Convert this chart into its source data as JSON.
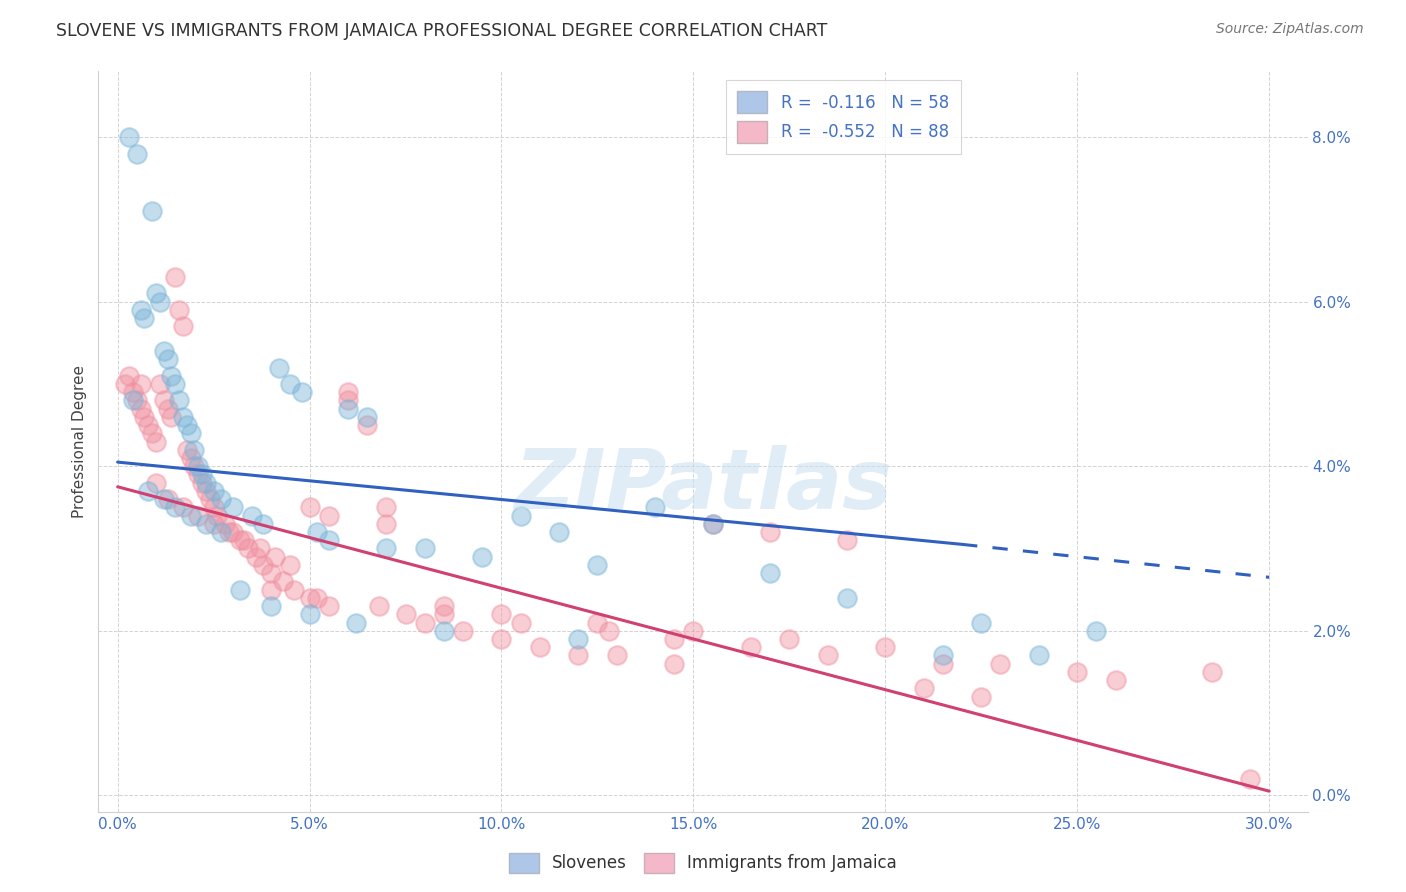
{
  "title": "SLOVENE VS IMMIGRANTS FROM JAMAICA PROFESSIONAL DEGREE CORRELATION CHART",
  "source": "Source: ZipAtlas.com",
  "xlim": [
    0,
    30
  ],
  "ylim": [
    0,
    8.5
  ],
  "x_ticks": [
    0,
    5,
    10,
    15,
    20,
    25,
    30
  ],
  "y_ticks": [
    0,
    2,
    4,
    6,
    8
  ],
  "watermark_text": "ZIPatlas",
  "legend_label1": "R =  -0.116   N = 58",
  "legend_label2": "R =  -0.552   N = 88",
  "legend_color1": "#aec6e8",
  "legend_color2": "#f4b8c8",
  "dot_color1": "#7ab4d8",
  "dot_color2": "#f090a0",
  "line_color1": "#3060c0",
  "line_color2": "#d04070",
  "blue_line": {
    "x0": 0,
    "y0": 4.05,
    "x1": 22,
    "y1": 3.05,
    "x2": 30,
    "y2": 2.65
  },
  "pink_line": {
    "x0": 0,
    "y0": 3.75,
    "x1": 30,
    "y1": 0.05
  },
  "slovene_x": [
    0.3,
    0.5,
    0.6,
    0.7,
    0.9,
    1.0,
    1.1,
    1.2,
    1.3,
    1.4,
    1.5,
    1.6,
    1.7,
    1.8,
    1.9,
    2.0,
    2.1,
    2.2,
    2.3,
    2.5,
    2.7,
    3.0,
    3.5,
    3.8,
    4.2,
    4.5,
    4.8,
    5.2,
    5.5,
    6.0,
    6.5,
    7.0,
    8.0,
    9.5,
    10.5,
    11.5,
    12.5,
    14.0,
    15.5,
    17.0,
    19.0,
    21.5,
    22.5,
    24.0,
    25.5,
    0.4,
    0.8,
    1.2,
    1.5,
    1.9,
    2.3,
    2.7,
    3.2,
    4.0,
    5.0,
    6.2,
    8.5,
    12.0
  ],
  "slovene_y": [
    8.0,
    7.8,
    5.9,
    5.8,
    7.1,
    6.1,
    6.0,
    5.4,
    5.3,
    5.1,
    5.0,
    4.8,
    4.6,
    4.5,
    4.4,
    4.2,
    4.0,
    3.9,
    3.8,
    3.7,
    3.6,
    3.5,
    3.4,
    3.3,
    5.2,
    5.0,
    4.9,
    3.2,
    3.1,
    4.7,
    4.6,
    3.0,
    3.0,
    2.9,
    3.4,
    3.2,
    2.8,
    3.5,
    3.3,
    2.7,
    2.4,
    1.7,
    2.1,
    1.7,
    2.0,
    4.8,
    3.7,
    3.6,
    3.5,
    3.4,
    3.3,
    3.2,
    2.5,
    2.3,
    2.2,
    2.1,
    2.0,
    1.9
  ],
  "jamaica_x": [
    0.2,
    0.4,
    0.5,
    0.6,
    0.7,
    0.8,
    0.9,
    1.0,
    1.1,
    1.2,
    1.3,
    1.4,
    1.5,
    1.6,
    1.7,
    1.8,
    1.9,
    2.0,
    2.1,
    2.2,
    2.3,
    2.4,
    2.5,
    2.6,
    2.8,
    3.0,
    3.2,
    3.4,
    3.6,
    3.8,
    4.0,
    4.3,
    4.6,
    5.0,
    5.5,
    6.0,
    6.5,
    7.0,
    7.5,
    8.0,
    9.0,
    10.0,
    11.0,
    12.0,
    13.0,
    14.5,
    15.5,
    17.0,
    19.0,
    21.0,
    22.5,
    25.0,
    28.5,
    0.3,
    0.6,
    1.0,
    1.3,
    1.7,
    2.1,
    2.5,
    2.9,
    3.3,
    3.7,
    4.1,
    4.5,
    5.0,
    5.5,
    6.0,
    7.0,
    8.5,
    10.0,
    12.5,
    15.0,
    17.5,
    20.0,
    23.0,
    26.0,
    29.5,
    4.0,
    5.2,
    6.8,
    8.5,
    10.5,
    12.8,
    14.5,
    16.5,
    18.5,
    21.5
  ],
  "jamaica_y": [
    5.0,
    4.9,
    4.8,
    4.7,
    4.6,
    4.5,
    4.4,
    4.3,
    5.0,
    4.8,
    4.7,
    4.6,
    6.3,
    5.9,
    5.7,
    4.2,
    4.1,
    4.0,
    3.9,
    3.8,
    3.7,
    3.6,
    3.5,
    3.4,
    3.3,
    3.2,
    3.1,
    3.0,
    2.9,
    2.8,
    2.7,
    2.6,
    2.5,
    2.4,
    2.3,
    4.9,
    4.5,
    3.5,
    2.2,
    2.1,
    2.0,
    1.9,
    1.8,
    1.7,
    1.7,
    1.6,
    3.3,
    3.2,
    3.1,
    1.3,
    1.2,
    1.5,
    1.5,
    5.1,
    5.0,
    3.8,
    3.6,
    3.5,
    3.4,
    3.3,
    3.2,
    3.1,
    3.0,
    2.9,
    2.8,
    3.5,
    3.4,
    4.8,
    3.3,
    2.3,
    2.2,
    2.1,
    2.0,
    1.9,
    1.8,
    1.6,
    1.4,
    0.2,
    2.5,
    2.4,
    2.3,
    2.2,
    2.1,
    2.0,
    1.9,
    1.8,
    1.7,
    1.6
  ]
}
